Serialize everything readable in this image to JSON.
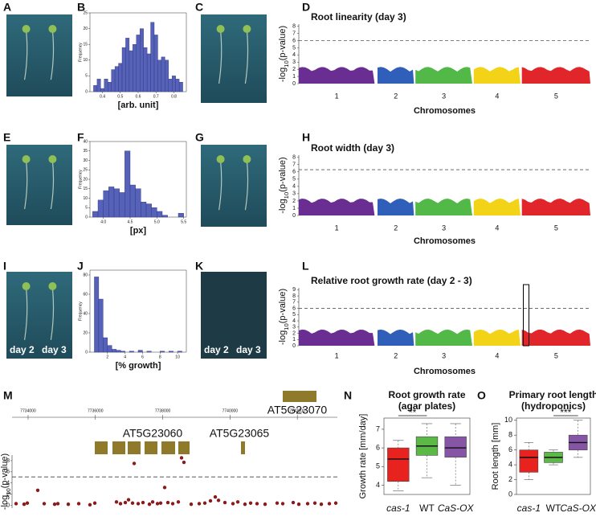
{
  "panel_labels": [
    "A",
    "B",
    "C",
    "D",
    "E",
    "F",
    "G",
    "H",
    "I",
    "J",
    "K",
    "L",
    "M",
    "N",
    "O"
  ],
  "photo_captions": {
    "I": [
      "day 2",
      "day 3"
    ],
    "K": [
      "day 2",
      "day 3"
    ]
  },
  "chart_data": [
    {
      "type": "histogram",
      "xlabel": "[arb. unit]",
      "ylabel": "Frequency",
      "color": "#5662b8",
      "bins": [
        0.35,
        0.37,
        0.39,
        0.41,
        0.43,
        0.45,
        0.47,
        0.49,
        0.51,
        0.53,
        0.55,
        0.57,
        0.59,
        0.61,
        0.63,
        0.65,
        0.67,
        0.69,
        0.71,
        0.73,
        0.75,
        0.77,
        0.79,
        0.81,
        0.83,
        0.85
      ],
      "values": [
        2,
        4,
        1,
        4,
        3,
        7,
        8,
        9,
        14,
        17,
        13,
        15,
        18,
        20,
        14,
        12,
        22,
        18,
        10,
        11,
        10,
        4,
        5,
        4,
        3
      ],
      "xlim": [
        0.33,
        0.87
      ],
      "xticks": [
        0.4,
        0.5,
        0.6,
        0.7,
        0.8
      ],
      "ylim": [
        0,
        25
      ],
      "yticks": [
        0,
        5,
        10,
        15,
        20,
        25
      ]
    },
    {
      "type": "manhattan",
      "title": "Root linearity (day 3)",
      "ylabel": [
        "-log",
        "10",
        "(p-value)"
      ],
      "xlabel": "Chromosomes",
      "categories": [
        "1",
        "2",
        "3",
        "4",
        "5"
      ],
      "colors": [
        "#6a2d91",
        "#2f5fb8",
        "#52b848",
        "#f2d317",
        "#e0262b"
      ],
      "ylim": [
        0,
        8.3
      ],
      "yticks": [
        0,
        1,
        2,
        3,
        4,
        5,
        6,
        7,
        8
      ],
      "threshold": 6
    },
    {
      "type": "histogram",
      "xlabel": "[px]",
      "ylabel": "Frequency",
      "color": "#5662b8",
      "bins": [
        3.8,
        3.9,
        4.0,
        4.1,
        4.2,
        4.3,
        4.4,
        4.5,
        4.6,
        4.7,
        4.8,
        4.9,
        5.0,
        5.1,
        5.2,
        5.3,
        5.4,
        5.5
      ],
      "values": [
        3,
        9,
        14,
        16,
        15,
        13,
        35,
        17,
        15,
        8,
        7,
        5,
        3,
        1,
        0,
        0,
        2
      ],
      "xlim": [
        3.75,
        5.55
      ],
      "xticks": [
        {
          "value": 4,
          "label": "4.0"
        },
        4.5,
        {
          "value": 5,
          "label": "5.0"
        },
        5.5
      ],
      "ylim": [
        0,
        40
      ],
      "yticks": [
        0,
        5,
        10,
        15,
        20,
        25,
        30,
        35,
        40
      ]
    },
    {
      "type": "manhattan",
      "title": "Root width (day 3)",
      "ylabel": [
        "-log",
        "10",
        "(p-value)"
      ],
      "xlabel": "Chromosomes",
      "categories": [
        "1",
        "2",
        "3",
        "4",
        "5"
      ],
      "colors": [
        "#6a2d91",
        "#2f5fb8",
        "#52b848",
        "#f2d317",
        "#e0262b"
      ],
      "ylim": [
        0,
        8.3
      ],
      "yticks": [
        0,
        1,
        2,
        3,
        4,
        5,
        6,
        7,
        8
      ],
      "threshold": 6.3
    },
    {
      "type": "histogram",
      "xlabel": "[% growth]",
      "ylabel": "Frequency",
      "color": "#5662b8",
      "bins": [
        0.5,
        1,
        1.5,
        2,
        2.5,
        3,
        3.5,
        4,
        4.5,
        5,
        5.5,
        6,
        6.5,
        7,
        7.5,
        8,
        8.5,
        9,
        9.5,
        10,
        10.5
      ],
      "values": [
        78,
        55,
        15,
        7,
        3,
        2,
        1,
        0,
        1,
        0,
        2,
        0,
        1,
        0,
        0,
        1,
        0,
        1,
        0,
        1
      ],
      "xlim": [
        0,
        11
      ],
      "xticks": [
        2,
        4,
        6,
        8,
        10
      ],
      "ylim": [
        0,
        85
      ],
      "yticks": [
        0,
        20,
        40,
        60,
        80
      ]
    },
    {
      "type": "manhattan",
      "title": "Relative root growth rate (day 2 - 3)",
      "ylabel": [
        "-log",
        "10",
        "(p-value)"
      ],
      "xlabel": "Chromosomes",
      "categories": [
        "1",
        "2",
        "3",
        "4",
        "5"
      ],
      "colors": [
        "#6a2d91",
        "#2f5fb8",
        "#52b848",
        "#f2d317",
        "#e0262b"
      ],
      "ylim": [
        0,
        9.3
      ],
      "yticks": [
        0,
        1,
        2,
        3,
        4,
        5,
        6,
        7,
        8,
        9
      ],
      "threshold": 6
    },
    {
      "type": "gene-track",
      "ylabel": [
        "-log",
        "10",
        "(p-value)"
      ],
      "genes": [
        "AT5G23060",
        "AT5G23065",
        "AT5G23070"
      ],
      "color": "#8b1a1a",
      "xlim": [
        7733523,
        7743190
      ],
      "xticks": [
        7734000,
        7736000,
        7738000,
        7740000,
        7742000
      ],
      "ylim": [
        -0.5,
        9
      ],
      "yticks": [
        0,
        2,
        4,
        6,
        8
      ],
      "threshold": 5.1,
      "x": [
        7733642,
        7733881,
        7733977,
        7734287,
        7734478,
        7734788,
        7734884,
        7735194,
        7735504,
        7735838,
        7735982,
        7736626,
        7736746,
        7736889,
        7736984,
        7737104,
        7737152,
        7737272,
        7737414,
        7737605,
        7737701,
        7737844,
        7737939,
        7738058,
        7738154,
        7738297,
        7738464,
        7738560,
        7738631,
        7738846,
        7739085,
        7739252,
        7739419,
        7739562,
        7739658,
        7739849,
        7740087,
        7740231,
        7740445,
        7740612,
        7740803,
        7741042,
        7741400,
        7741567,
        7741878,
        7742045,
        7742307,
        7742522,
        7742713,
        7742952,
        7743143
      ],
      "values": [
        0.3,
        0.2,
        0.4,
        2.7,
        0.3,
        0.2,
        0.3,
        0.2,
        0.3,
        0.1,
        0.4,
        0.6,
        0.3,
        0.5,
        1.0,
        0.4,
        7.5,
        0.3,
        0.5,
        0.2,
        0.6,
        0.3,
        0.4,
        3.2,
        0.5,
        0.3,
        0.6,
        8.5,
        7.7,
        0.2,
        0.3,
        0.4,
        0.8,
        1.5,
        0.9,
        0.5,
        0.3,
        0.6,
        0.2,
        0.4,
        0.3,
        0.2,
        0.4,
        0.3,
        0.5,
        0.2,
        0.3,
        0.4,
        0.2,
        0.3,
        0.4
      ]
    },
    {
      "type": "boxplot",
      "title": "Root growth rate",
      "subtitle": "(agar plates)",
      "ylabel": "Growth rate [mm/day]",
      "categories": [
        "cas-1",
        "WT",
        "CaS-OX"
      ],
      "colors": [
        "#e8231f",
        "#5cb947",
        "#8755a6"
      ],
      "boxes": [
        {
          "min": 3.7,
          "q1": 4.2,
          "median": 5.4,
          "q3": 6.0,
          "max": 6.4
        },
        {
          "min": 4.4,
          "q1": 5.6,
          "median": 6.1,
          "q3": 6.6,
          "max": 7.3
        },
        {
          "min": 4.0,
          "q1": 5.5,
          "median": 6.0,
          "q3": 6.6,
          "max": 7.3
        }
      ],
      "significance": "**",
      "ylim": [
        3.5,
        7.6
      ],
      "yticks": [
        4,
        5,
        6,
        7
      ]
    },
    {
      "type": "boxplot",
      "title": "Primary root length",
      "subtitle": "(hydroponics)",
      "ylabel": "Root length [mm]",
      "categories": [
        "cas-1",
        "WT",
        "CaS-OX"
      ],
      "colors": [
        "#e8231f",
        "#5cb947",
        "#8755a6"
      ],
      "boxes": [
        {
          "min": 2,
          "q1": 3,
          "median": 5,
          "q3": 6,
          "max": 7
        },
        {
          "min": 4,
          "q1": 4.3,
          "median": 5,
          "q3": 5.7,
          "max": 6
        },
        {
          "min": 5,
          "q1": 6,
          "median": 7,
          "q3": 8,
          "max": 10
        }
      ],
      "significance": "***",
      "ylim": [
        0,
        10.3
      ],
      "yticks": [
        0,
        2,
        4,
        6,
        8,
        10
      ]
    }
  ]
}
